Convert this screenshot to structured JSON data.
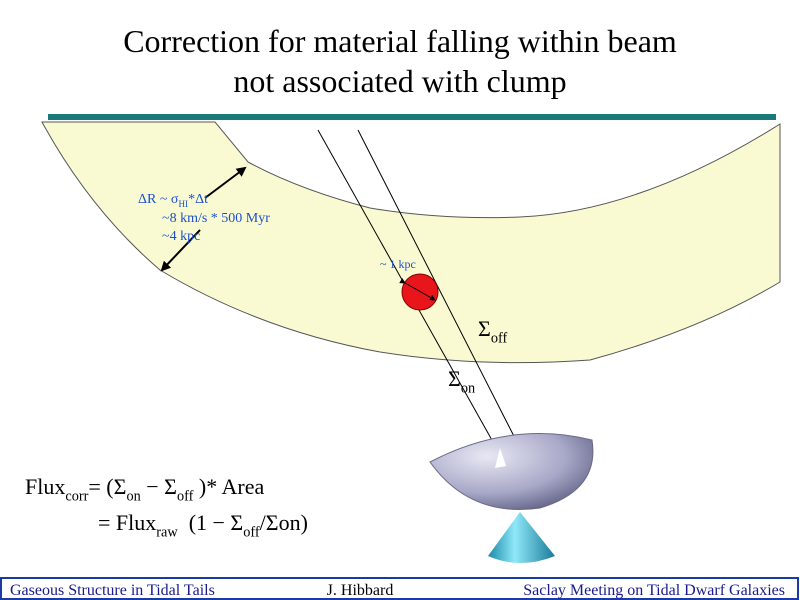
{
  "title": [
    "Correction for material falling within beam",
    "not associated with clump"
  ],
  "annotations": [
    {
      "segments": [
        {
          "text": "ΔR ~ σ"
        },
        {
          "text": "HI",
          "sub": true
        },
        {
          "text": "*Δt"
        }
      ]
    },
    {
      "segments": [
        {
          "text": "~8 km/s * 500 Myr"
        }
      ]
    },
    {
      "segments": [
        {
          "text": "~4 kpc"
        }
      ]
    },
    {
      "segments": [
        {
          "text": "~ 1 kpc"
        }
      ]
    },
    {
      "segments": [
        {
          "text": "Σ"
        },
        {
          "text": "off",
          "sub": true
        }
      ]
    },
    {
      "segments": [
        {
          "text": "Σ"
        },
        {
          "text": "on",
          "sub": true
        }
      ]
    }
  ],
  "formula": [
    {
      "segments": [
        {
          "text": "Flux"
        },
        {
          "text": "corr",
          "sub": true
        },
        {
          "text": "= (Σ"
        },
        {
          "text": "on",
          "sub": true
        },
        {
          "text": " − Σ"
        },
        {
          "text": "off",
          "sub": true
        },
        {
          "text": " )* Area"
        }
      ]
    },
    {
      "segments": [
        {
          "text": "= Flux"
        },
        {
          "text": "raw",
          "sub": true
        },
        {
          "text": "  (1 − Σ"
        },
        {
          "text": "off",
          "sub": true
        },
        {
          "text": "/Σon)"
        }
      ]
    }
  ],
  "footer": {
    "left": "Gaseous Structure in Tidal Tails",
    "center": "J. Hibbard",
    "right": "Saclay Meeting on Tidal Dwarf Galaxies"
  }
}
